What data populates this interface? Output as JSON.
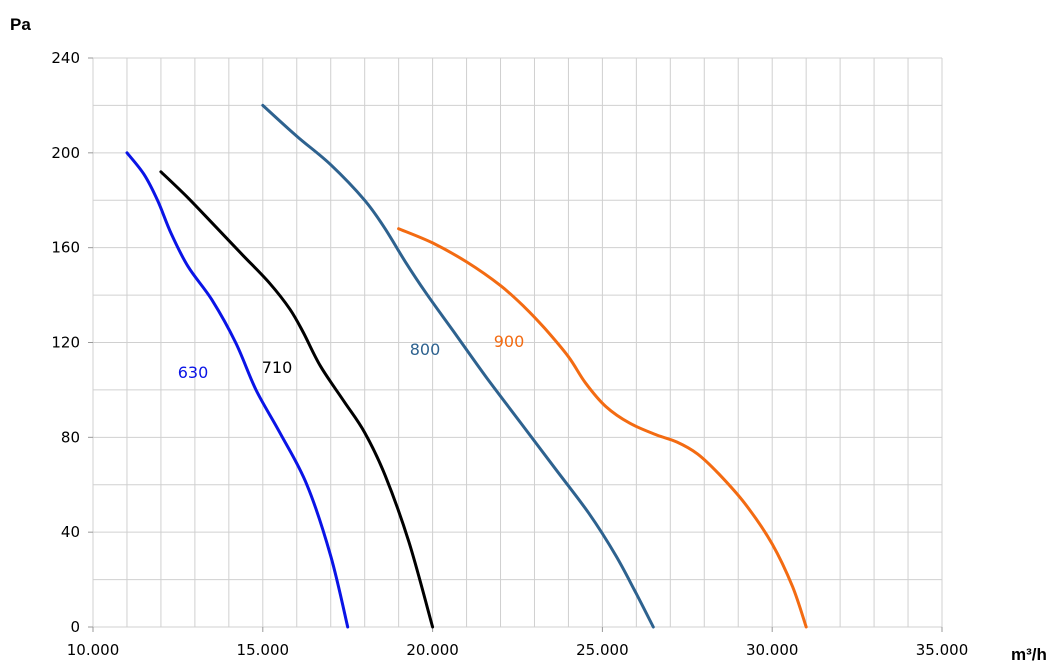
{
  "chart_data": {
    "type": "line",
    "xlabel": "m³/h",
    "ylabel": "Pa",
    "xlim": [
      10000,
      35000
    ],
    "ylim": [
      0,
      240
    ],
    "x_ticks": [
      10000,
      15000,
      20000,
      25000,
      30000,
      35000
    ],
    "x_tick_labels": [
      "10.000",
      "15.000",
      "20.000",
      "25.000",
      "30.000",
      "35.000"
    ],
    "y_ticks": [
      0,
      40,
      80,
      120,
      160,
      200,
      240
    ],
    "y_tick_labels": [
      "0",
      "40",
      "80",
      "120",
      "160",
      "200",
      "240"
    ],
    "grid": true,
    "legend": "none (inline labels)",
    "series": [
      {
        "name": "630",
        "color": "#0a14e6",
        "x": [
          11000,
          11500,
          11900,
          12300,
          12800,
          13500,
          14200,
          14800,
          15500,
          16300,
          17000,
          17500
        ],
        "y": [
          200,
          191,
          180,
          166,
          152,
          138,
          120,
          100,
          82,
          60,
          30,
          0
        ]
      },
      {
        "name": "710",
        "color": "#000000",
        "x": [
          12000,
          12800,
          13600,
          14400,
          15200,
          15800,
          16200,
          16700,
          17400,
          18000,
          18600,
          19300,
          20000
        ],
        "y": [
          192,
          181,
          169,
          157,
          145,
          134,
          124,
          110,
          95,
          82,
          64,
          36,
          0
        ]
      },
      {
        "name": "800",
        "color": "#2e628f",
        "x": [
          15000,
          16000,
          17000,
          18000,
          18600,
          19200,
          19800,
          20600,
          21600,
          22600,
          23600,
          24600,
          25400,
          26000,
          26500
        ],
        "y": [
          220,
          207,
          195,
          180,
          168,
          154,
          141,
          125,
          105,
          86,
          67,
          48,
          30,
          14,
          0
        ]
      },
      {
        "name": "900",
        "color": "#f36b12",
        "x": [
          19000,
          20000,
          21000,
          22000,
          22700,
          23300,
          24000,
          24500,
          25100,
          25800,
          26600,
          27200,
          27800,
          28400,
          29200,
          30000,
          30600,
          31000
        ],
        "y": [
          168,
          162,
          154,
          144,
          135,
          126,
          114,
          103,
          93,
          86,
          81,
          78,
          73,
          65,
          52,
          35,
          17,
          0
        ]
      }
    ],
    "annotations": [
      {
        "text": "630",
        "series": "630"
      },
      {
        "text": "710",
        "series": "710"
      },
      {
        "text": "800",
        "series": "800"
      },
      {
        "text": "900",
        "series": "900"
      }
    ]
  }
}
